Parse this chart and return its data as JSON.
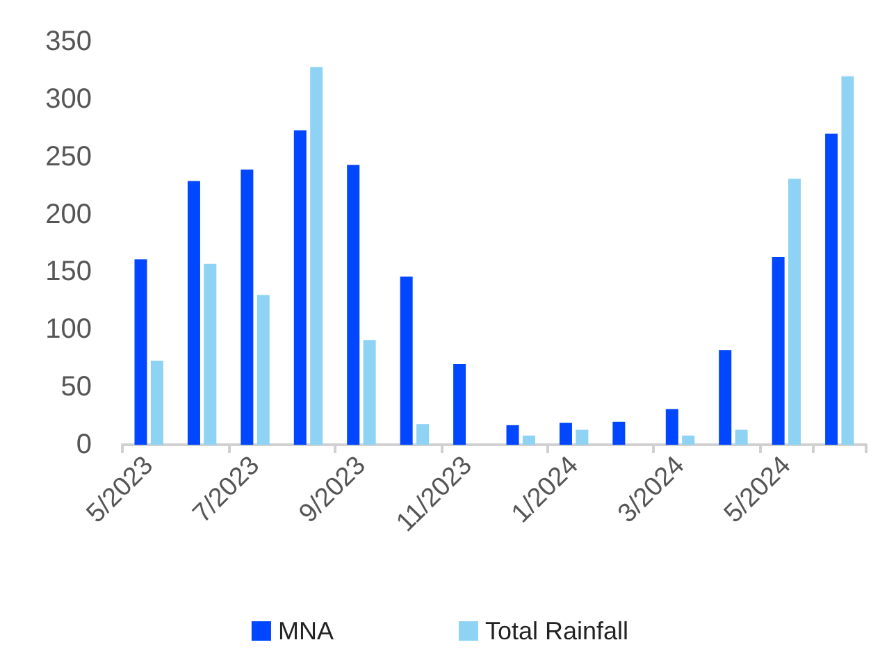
{
  "chart_data": {
    "type": "bar",
    "categories": [
      "5/2023",
      null,
      "7/2023",
      null,
      "9/2023",
      null,
      "11/2023",
      null,
      "1/2024",
      null,
      "3/2024",
      null,
      "5/2024",
      null
    ],
    "series": [
      {
        "name": "MNA",
        "color": "#0047ff",
        "values": [
          161,
          229,
          239,
          273,
          243,
          146,
          70,
          17,
          19,
          20,
          31,
          82,
          163,
          270
        ]
      },
      {
        "name": "Total Rainfall",
        "color": "#8fd3f4",
        "values": [
          73,
          157,
          130,
          328,
          91,
          18,
          0,
          8,
          13,
          0,
          8,
          13,
          231,
          320
        ]
      }
    ],
    "ylim": [
      0,
      350
    ],
    "yticks": [
      0,
      50,
      100,
      150,
      200,
      250,
      300,
      350
    ],
    "grid": false,
    "legend": "bottom"
  }
}
